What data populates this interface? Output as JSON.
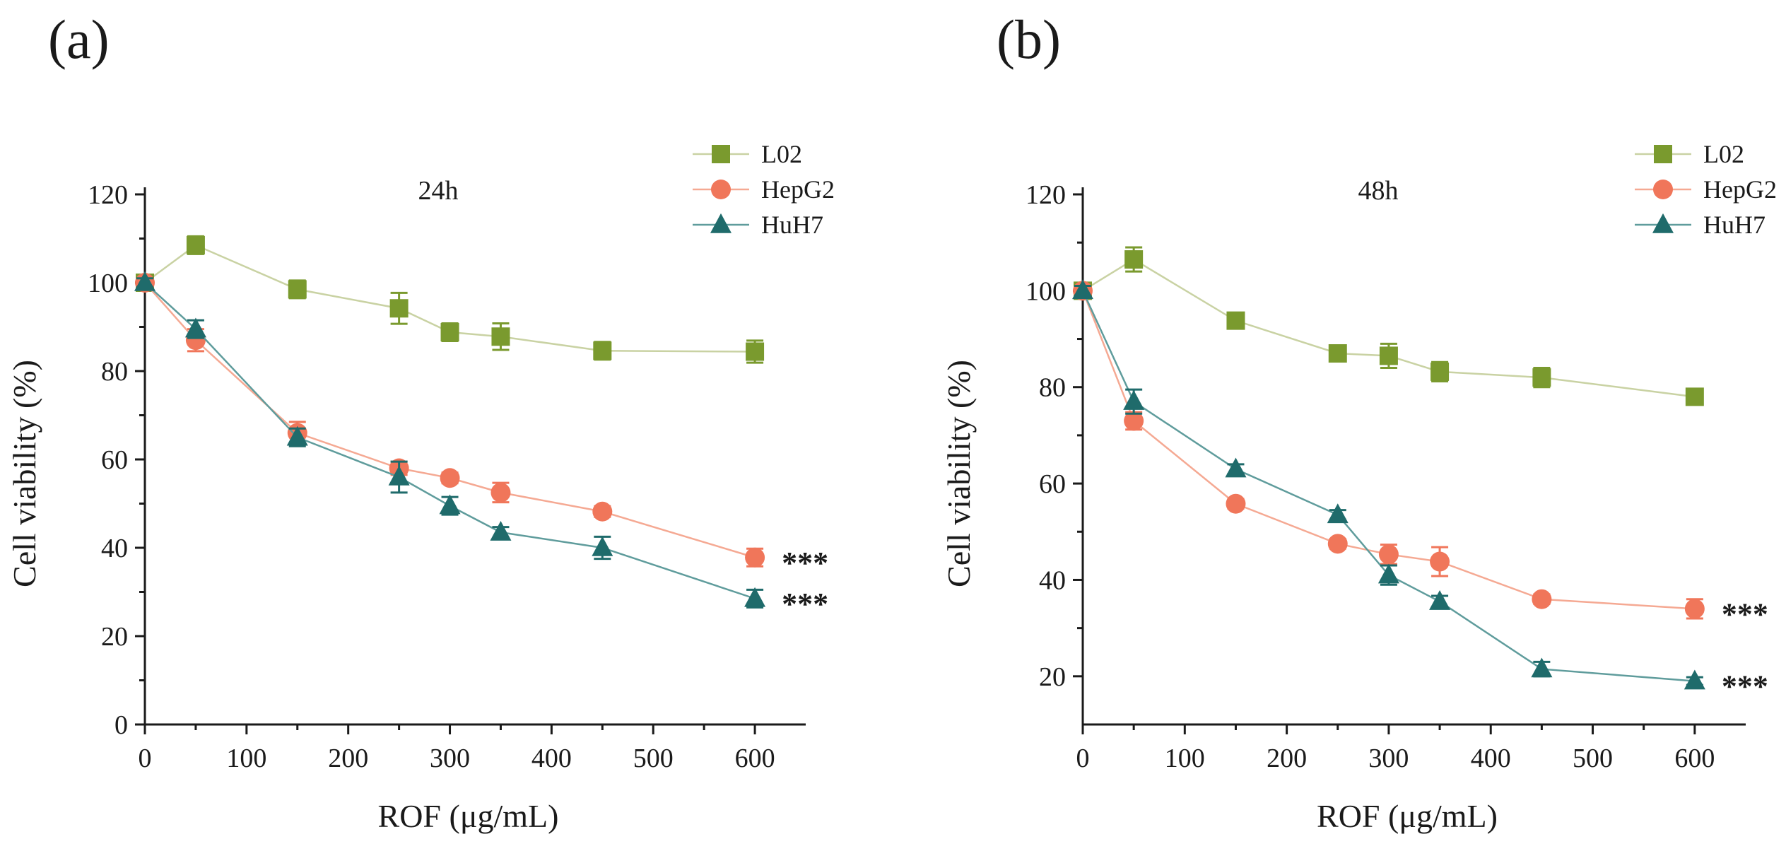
{
  "figure": {
    "panels": [
      "(a)",
      "(b)"
    ]
  },
  "colors": {
    "L02": "#7A9A2E",
    "HepG2": "#F0765A",
    "HuH7": "#1F6B6B",
    "L02_line": "#C9D2A3",
    "HepG2_line": "#F5A993",
    "HuH7_line": "#5F9C9C"
  },
  "chart_data": [
    {
      "type": "line",
      "panel_label": "(a)",
      "title": "24h",
      "xlabel": "ROF (μg/mL)",
      "ylabel": "Cell viability (%)",
      "xlim": [
        0,
        650
      ],
      "ylim": [
        0,
        120
      ],
      "xticks": [
        0,
        100,
        200,
        300,
        400,
        500,
        600
      ],
      "yticks": [
        0,
        20,
        40,
        60,
        80,
        100,
        120
      ],
      "x": [
        0,
        50,
        150,
        250,
        300,
        350,
        450,
        600
      ],
      "series": [
        {
          "name": "L02",
          "marker": "square",
          "values": [
            100,
            108.5,
            98.5,
            94.2,
            88.8,
            87.8,
            84.6,
            84.4
          ],
          "errors": [
            1.0,
            2.0,
            2.0,
            3.5,
            2.0,
            3.0,
            2.0,
            2.5
          ]
        },
        {
          "name": "HepG2",
          "marker": "circle",
          "values": [
            100,
            87,
            66,
            58,
            55.8,
            52.5,
            48.2,
            37.8
          ],
          "errors": [
            1.0,
            2.5,
            2.5,
            1.5,
            1.2,
            2.2,
            1.2,
            2.0
          ]
        },
        {
          "name": "HuH7",
          "marker": "triangle",
          "values": [
            100,
            89.5,
            65,
            56,
            49.5,
            43.5,
            40,
            28.5
          ],
          "errors": [
            1.0,
            2.0,
            2.0,
            3.5,
            2.0,
            1.2,
            2.5,
            2.0
          ]
        }
      ],
      "legend": {
        "placement": "top-right",
        "entries": [
          "L02",
          "HepG2",
          "HuH7"
        ]
      },
      "annotations": [
        {
          "text": "***",
          "series": "HepG2"
        },
        {
          "text": "***",
          "series": "HuH7"
        }
      ]
    },
    {
      "type": "line",
      "panel_label": "(b)",
      "title": "48h",
      "xlabel": "ROF (μg/mL)",
      "ylabel": "Cell viability (%)",
      "xlim": [
        0,
        650
      ],
      "ylim": [
        10,
        120
      ],
      "xticks": [
        0,
        100,
        200,
        300,
        400,
        500,
        600
      ],
      "yticks": [
        20,
        40,
        60,
        80,
        100,
        120
      ],
      "x": [
        0,
        50,
        150,
        250,
        300,
        350,
        450,
        600
      ],
      "series": [
        {
          "name": "L02",
          "marker": "square",
          "values": [
            100,
            106.5,
            93.8,
            87,
            86.5,
            83.2,
            82,
            78
          ],
          "errors": [
            1.0,
            2.5,
            1.0,
            1.0,
            2.5,
            2.0,
            2.0,
            1.5
          ]
        },
        {
          "name": "HepG2",
          "marker": "circle",
          "values": [
            100,
            73,
            55.8,
            47.5,
            45.3,
            43.8,
            36,
            34
          ],
          "errors": [
            1.0,
            1.8,
            1.0,
            1.0,
            2.0,
            3.0,
            1.0,
            2.0
          ]
        },
        {
          "name": "HuH7",
          "marker": "triangle",
          "values": [
            100,
            77,
            63,
            53.5,
            41,
            35.5,
            21.5,
            19
          ],
          "errors": [
            1.0,
            2.5,
            1.0,
            1.0,
            2.0,
            1.2,
            1.5,
            0.8
          ]
        }
      ],
      "legend": {
        "placement": "top-right",
        "entries": [
          "L02",
          "HepG2",
          "HuH7"
        ]
      },
      "annotations": [
        {
          "text": "***",
          "series": "HepG2"
        },
        {
          "text": "***",
          "series": "HuH7"
        }
      ]
    }
  ]
}
